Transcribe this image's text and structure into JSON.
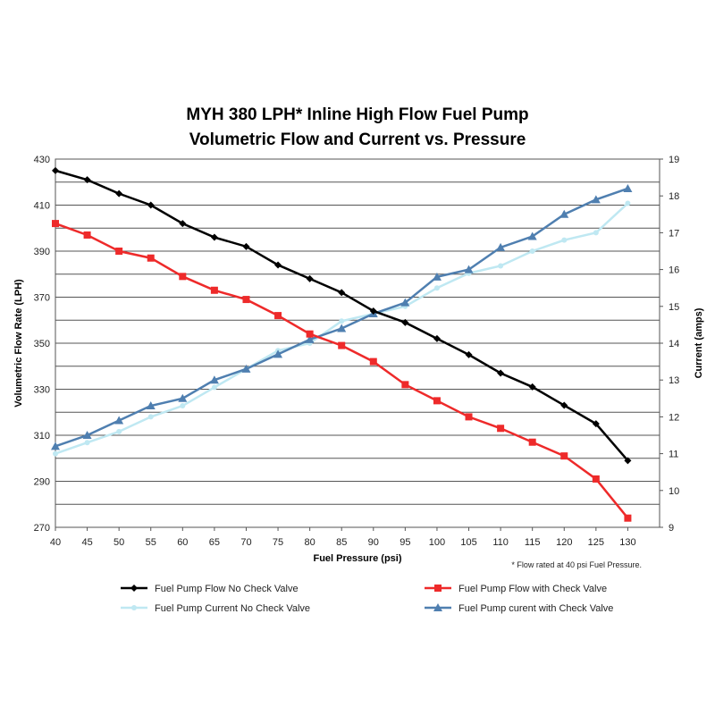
{
  "chart_data": {
    "type": "line",
    "title": "MYH 380 LPH* Inline High Flow Fuel Pump",
    "subtitle": "Volumetric Flow and Current  vs. Pressure",
    "xlabel": "Fuel Pressure (psi)",
    "ylabel": "Volumetric Flow Rate (LPH)",
    "y2label": "Current (amps)",
    "x": [
      40,
      45,
      50,
      55,
      60,
      65,
      70,
      75,
      80,
      85,
      90,
      95,
      100,
      105,
      110,
      115,
      120,
      125,
      130
    ],
    "xlim": [
      40,
      135
    ],
    "xticks": [
      "40",
      "45",
      "50",
      "55",
      "60",
      "65",
      "70",
      "75",
      "80",
      "85",
      "90",
      "95",
      "100",
      "105",
      "110",
      "115",
      "120",
      "125",
      "130"
    ],
    "ylim": [
      270,
      430
    ],
    "yticks": [
      "270",
      "290",
      "310",
      "330",
      "350",
      "370",
      "390",
      "410",
      "430"
    ],
    "y2lim": [
      9,
      19
    ],
    "y2ticks": [
      "9",
      "10",
      "11",
      "12",
      "13",
      "14",
      "15",
      "16",
      "17",
      "18",
      "19"
    ],
    "grid": "horizontal",
    "footnote": "* Flow rated at 40 psi Fuel Pressure.",
    "series": [
      {
        "name": "Fuel Pump Flow No Check Valve",
        "axis": "left",
        "color": "#000000",
        "marker": "diamond",
        "values": [
          425,
          421,
          415,
          410,
          402,
          396,
          392,
          384,
          378,
          372,
          364,
          359,
          352,
          345,
          337,
          331,
          323,
          315,
          299
        ]
      },
      {
        "name": "Fuel Pump Flow with Check Valve",
        "axis": "left",
        "color": "#ee2a2a",
        "marker": "square",
        "values": [
          402,
          397,
          390,
          387,
          379,
          373,
          369,
          362,
          354,
          349,
          342,
          332,
          325,
          318,
          313,
          307,
          301,
          291,
          274
        ]
      },
      {
        "name": "Fuel Pump Current No Check Valve",
        "axis": "right",
        "color": "#bfe8f2",
        "marker": "circle",
        "values": [
          11.0,
          11.3,
          11.6,
          12.0,
          12.3,
          12.8,
          13.3,
          13.8,
          14.0,
          14.6,
          14.8,
          15.0,
          15.5,
          15.9,
          16.1,
          16.5,
          16.8,
          17.0,
          17.8
        ]
      },
      {
        "name": "Fuel Pump curent with Check Valve",
        "axis": "right",
        "color": "#4f7fb0",
        "marker": "triangle",
        "values": [
          11.2,
          11.5,
          11.9,
          12.3,
          12.5,
          13.0,
          13.3,
          13.7,
          14.1,
          14.4,
          14.8,
          15.1,
          15.8,
          16.0,
          16.6,
          16.9,
          17.5,
          17.9,
          18.2
        ]
      }
    ]
  }
}
